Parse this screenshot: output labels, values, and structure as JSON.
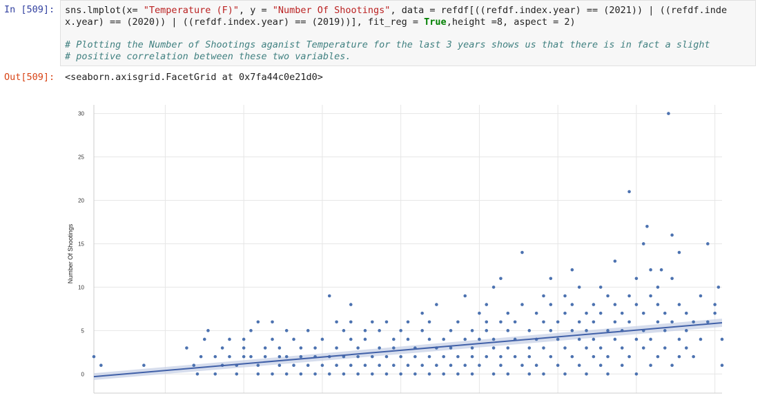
{
  "input_prompt": "In [509]:",
  "output_prompt": "Out[509]:",
  "code": {
    "line1_a": "sns.lmplot(x= ",
    "line1_str1": "\"Temperature (F)\"",
    "line1_b": ", y = ",
    "line1_str2": "\"Number Of Shootings\"",
    "line1_c": ", data = refdf[((refdf.index.year) == (2021)) | ((refdf.inde",
    "line2_a": "x.year) == (2020)) | ((refdf.index.year) == (2019))], fit_reg = ",
    "line2_kw": "True",
    "line2_b": ",height =8, aspect = 2)",
    "comment1": "# Plotting the Number of Shootings aganist Temperature for the last 3 years shows us that there is in fact a slight",
    "comment2": "# positive correlation between these two variables."
  },
  "output_text": "<seaborn.axisgrid.FacetGrid at 0x7fa44c0e21d0>",
  "chart_data": {
    "type": "scatter",
    "title": "",
    "xlabel": "",
    "ylabel": "Number Of Shootings",
    "xlim": [
      9,
      97
    ],
    "ylim": [
      -2.2,
      31
    ],
    "yticks": [
      0,
      5,
      10,
      15,
      20,
      25,
      30
    ],
    "xgrid": [
      19,
      30,
      41,
      52,
      63,
      74,
      85,
      96
    ],
    "grid": true,
    "point_color": "#4c72b0",
    "line_color": "#4060a8",
    "band_color": "#c5cfe6",
    "regression": {
      "x0": 9,
      "y0": -0.3,
      "x1": 97,
      "y1": 5.9,
      "band_width": 0.3
    },
    "points": [
      [
        9,
        2
      ],
      [
        10,
        1
      ],
      [
        16,
        1
      ],
      [
        22,
        3
      ],
      [
        23,
        1
      ],
      [
        23.5,
        0
      ],
      [
        24,
        2
      ],
      [
        24.5,
        4
      ],
      [
        25,
        5
      ],
      [
        26,
        2
      ],
      [
        26,
        0
      ],
      [
        27,
        3
      ],
      [
        27,
        1
      ],
      [
        28,
        2
      ],
      [
        28,
        4
      ],
      [
        29,
        0
      ],
      [
        29,
        1
      ],
      [
        30,
        2
      ],
      [
        30,
        3
      ],
      [
        30,
        4
      ],
      [
        31,
        2
      ],
      [
        31,
        5
      ],
      [
        32,
        1
      ],
      [
        32,
        6
      ],
      [
        32,
        0
      ],
      [
        33,
        3
      ],
      [
        33,
        2
      ],
      [
        34,
        6
      ],
      [
        34,
        0
      ],
      [
        34,
        4
      ],
      [
        35,
        1
      ],
      [
        35,
        2
      ],
      [
        35,
        3
      ],
      [
        36,
        5
      ],
      [
        36,
        0
      ],
      [
        36,
        2
      ],
      [
        37,
        1
      ],
      [
        37,
        4
      ],
      [
        38,
        3
      ],
      [
        38,
        0
      ],
      [
        38,
        2
      ],
      [
        39,
        1
      ],
      [
        39,
        5
      ],
      [
        40,
        0
      ],
      [
        40,
        3
      ],
      [
        40,
        2
      ],
      [
        41,
        4
      ],
      [
        41,
        1
      ],
      [
        42,
        9
      ],
      [
        42,
        0
      ],
      [
        42,
        2
      ],
      [
        43,
        3
      ],
      [
        43,
        6
      ],
      [
        43,
        1
      ],
      [
        44,
        5
      ],
      [
        44,
        0
      ],
      [
        44,
        2
      ],
      [
        45,
        4
      ],
      [
        45,
        6
      ],
      [
        45,
        8
      ],
      [
        45,
        1
      ],
      [
        46,
        3
      ],
      [
        46,
        0
      ],
      [
        46,
        2
      ],
      [
        47,
        1
      ],
      [
        47,
        5
      ],
      [
        47,
        4
      ],
      [
        48,
        2
      ],
      [
        48,
        6
      ],
      [
        48,
        0
      ],
      [
        49,
        3
      ],
      [
        49,
        1
      ],
      [
        49,
        5
      ],
      [
        50,
        6
      ],
      [
        50,
        2
      ],
      [
        50,
        0
      ],
      [
        51,
        4
      ],
      [
        51,
        1
      ],
      [
        51,
        3
      ],
      [
        52,
        2
      ],
      [
        52,
        5
      ],
      [
        52,
        0
      ],
      [
        53,
        1
      ],
      [
        53,
        4
      ],
      [
        53,
        6
      ],
      [
        54,
        3
      ],
      [
        54,
        0
      ],
      [
        54,
        2
      ],
      [
        55,
        5
      ],
      [
        55,
        1
      ],
      [
        55,
        7
      ],
      [
        56,
        2
      ],
      [
        56,
        4
      ],
      [
        56,
        0
      ],
      [
        56,
        6
      ],
      [
        57,
        3
      ],
      [
        57,
        1
      ],
      [
        57,
        8
      ],
      [
        58,
        4
      ],
      [
        58,
        0
      ],
      [
        58,
        2
      ],
      [
        59,
        3
      ],
      [
        59,
        5
      ],
      [
        59,
        1
      ],
      [
        60,
        6
      ],
      [
        60,
        2
      ],
      [
        60,
        0
      ],
      [
        61,
        4
      ],
      [
        61,
        9
      ],
      [
        61,
        1
      ],
      [
        62,
        3
      ],
      [
        62,
        5
      ],
      [
        62,
        2
      ],
      [
        62,
        0
      ],
      [
        63,
        7
      ],
      [
        63,
        4
      ],
      [
        63,
        1
      ],
      [
        64,
        8
      ],
      [
        64,
        6
      ],
      [
        64,
        2
      ],
      [
        64,
        5
      ],
      [
        65,
        3
      ],
      [
        65,
        0
      ],
      [
        65,
        10
      ],
      [
        65,
        4
      ],
      [
        66,
        11
      ],
      [
        66,
        1
      ],
      [
        66,
        6
      ],
      [
        66,
        2
      ],
      [
        67,
        5
      ],
      [
        67,
        3
      ],
      [
        67,
        7
      ],
      [
        67,
        0
      ],
      [
        68,
        2
      ],
      [
        68,
        4
      ],
      [
        68,
        6
      ],
      [
        69,
        14
      ],
      [
        69,
        1
      ],
      [
        69,
        8
      ],
      [
        70,
        5
      ],
      [
        70,
        3
      ],
      [
        70,
        0
      ],
      [
        70,
        2
      ],
      [
        71,
        7
      ],
      [
        71,
        4
      ],
      [
        71,
        1
      ],
      [
        72,
        6
      ],
      [
        72,
        9
      ],
      [
        72,
        3
      ],
      [
        72,
        0
      ],
      [
        73,
        5
      ],
      [
        73,
        2
      ],
      [
        73,
        11
      ],
      [
        73,
        8
      ],
      [
        74,
        4
      ],
      [
        74,
        6
      ],
      [
        74,
        1
      ],
      [
        75,
        7
      ],
      [
        75,
        3
      ],
      [
        75,
        0
      ],
      [
        75,
        9
      ],
      [
        76,
        12
      ],
      [
        76,
        5
      ],
      [
        76,
        2
      ],
      [
        76,
        8
      ],
      [
        77,
        4
      ],
      [
        77,
        6
      ],
      [
        77,
        1
      ],
      [
        77,
        10
      ],
      [
        78,
        3
      ],
      [
        78,
        7
      ],
      [
        78,
        0
      ],
      [
        78,
        5
      ],
      [
        79,
        8
      ],
      [
        79,
        2
      ],
      [
        79,
        4
      ],
      [
        79,
        6
      ],
      [
        80,
        10
      ],
      [
        80,
        3
      ],
      [
        80,
        1
      ],
      [
        80,
        7
      ],
      [
        81,
        5
      ],
      [
        81,
        9
      ],
      [
        81,
        2
      ],
      [
        81,
        0
      ],
      [
        82,
        6
      ],
      [
        82,
        4
      ],
      [
        82,
        8
      ],
      [
        82,
        13
      ],
      [
        83,
        3
      ],
      [
        83,
        7
      ],
      [
        83,
        1
      ],
      [
        83,
        5
      ],
      [
        84,
        9
      ],
      [
        84,
        21
      ],
      [
        84,
        6
      ],
      [
        84,
        2
      ],
      [
        85,
        4
      ],
      [
        85,
        11
      ],
      [
        85,
        8
      ],
      [
        85,
        0
      ],
      [
        86,
        15
      ],
      [
        86,
        5
      ],
      [
        86,
        3
      ],
      [
        86,
        7
      ],
      [
        86.5,
        17
      ],
      [
        87,
        9
      ],
      [
        87,
        12
      ],
      [
        87,
        1
      ],
      [
        87,
        4
      ],
      [
        88,
        10
      ],
      [
        88,
        6
      ],
      [
        88,
        2
      ],
      [
        88,
        8
      ],
      [
        88.5,
        12
      ],
      [
        89,
        5
      ],
      [
        89,
        3
      ],
      [
        89,
        7
      ],
      [
        89.5,
        30
      ],
      [
        90,
        11
      ],
      [
        90,
        16
      ],
      [
        90,
        1
      ],
      [
        90,
        6
      ],
      [
        91,
        14
      ],
      [
        91,
        4
      ],
      [
        91,
        2
      ],
      [
        91,
        8
      ],
      [
        92,
        5
      ],
      [
        92,
        7
      ],
      [
        92,
        3
      ],
      [
        93,
        6
      ],
      [
        93,
        2
      ],
      [
        94,
        4
      ],
      [
        94,
        9
      ],
      [
        95,
        15
      ],
      [
        95,
        6
      ],
      [
        96,
        8
      ],
      [
        96,
        7
      ],
      [
        96.5,
        10
      ],
      [
        97,
        4
      ],
      [
        97,
        1
      ]
    ]
  }
}
